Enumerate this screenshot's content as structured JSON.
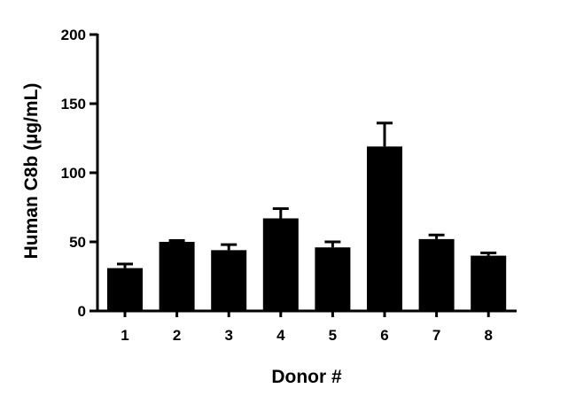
{
  "chart_data": {
    "type": "bar",
    "title": "",
    "xlabel": "Donor #",
    "ylabel": "Human C8b (µg/mL)",
    "categories": [
      "1",
      "2",
      "3",
      "4",
      "5",
      "6",
      "7",
      "8"
    ],
    "values": [
      31,
      50,
      44,
      67,
      46,
      119,
      52,
      40
    ],
    "error_upper": [
      34,
      51,
      48,
      74,
      50,
      136,
      55,
      42
    ],
    "ylim": [
      0,
      200
    ],
    "yticks": [
      0,
      50,
      100,
      150,
      200
    ],
    "grid": false,
    "legend": "none",
    "bar_color": "#000000"
  }
}
